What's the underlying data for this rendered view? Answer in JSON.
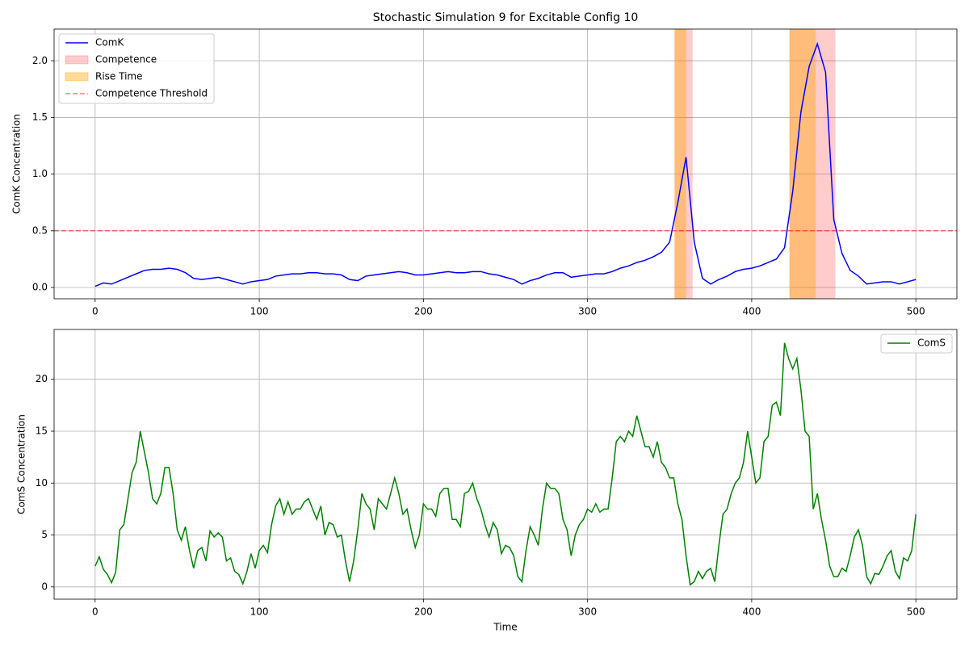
{
  "chart_data": [
    {
      "type": "line",
      "title": "Stochastic Simulation 9 for Excitable Config 10",
      "ylabel": "ComK Concentration",
      "x": [
        0,
        5,
        10,
        15,
        20,
        25,
        30,
        35,
        40,
        45,
        50,
        55,
        60,
        65,
        70,
        75,
        80,
        85,
        90,
        95,
        100,
        105,
        110,
        115,
        120,
        125,
        130,
        135,
        140,
        145,
        150,
        155,
        160,
        165,
        170,
        175,
        180,
        185,
        190,
        195,
        200,
        205,
        210,
        215,
        220,
        225,
        230,
        235,
        240,
        245,
        250,
        255,
        260,
        265,
        270,
        275,
        280,
        285,
        290,
        295,
        300,
        305,
        310,
        315,
        320,
        325,
        330,
        335,
        340,
        345,
        350,
        355,
        360,
        365,
        370,
        375,
        380,
        385,
        390,
        395,
        400,
        405,
        410,
        415,
        420,
        425,
        430,
        435,
        440,
        445,
        450,
        455,
        460,
        465,
        470,
        475,
        480,
        485,
        490,
        495,
        500
      ],
      "series": [
        {
          "name": "ComK",
          "color": "#0000ff",
          "values": [
            0.01,
            0.04,
            0.03,
            0.06,
            0.09,
            0.12,
            0.15,
            0.16,
            0.16,
            0.17,
            0.16,
            0.13,
            0.08,
            0.07,
            0.08,
            0.09,
            0.07,
            0.05,
            0.03,
            0.05,
            0.06,
            0.07,
            0.1,
            0.11,
            0.12,
            0.12,
            0.13,
            0.13,
            0.12,
            0.12,
            0.11,
            0.07,
            0.06,
            0.1,
            0.11,
            0.12,
            0.13,
            0.14,
            0.13,
            0.11,
            0.11,
            0.12,
            0.13,
            0.14,
            0.13,
            0.13,
            0.14,
            0.14,
            0.12,
            0.11,
            0.09,
            0.07,
            0.03,
            0.06,
            0.08,
            0.11,
            0.13,
            0.13,
            0.09,
            0.1,
            0.11,
            0.12,
            0.12,
            0.14,
            0.17,
            0.19,
            0.22,
            0.24,
            0.27,
            0.31,
            0.4,
            0.75,
            1.15,
            0.4,
            0.08,
            0.03,
            0.07,
            0.1,
            0.14,
            0.16,
            0.17,
            0.19,
            0.22,
            0.25,
            0.35,
            0.85,
            1.55,
            1.95,
            2.15,
            1.9,
            0.6,
            0.3,
            0.15,
            0.1,
            0.03,
            0.04,
            0.05,
            0.05,
            0.03,
            0.05,
            0.07
          ]
        }
      ],
      "spans": [
        {
          "name": "Competence",
          "color": "#ff0000",
          "alpha": 0.2,
          "ranges": [
            [
              353,
              364
            ],
            [
              423,
              451
            ]
          ]
        },
        {
          "name": "Rise Time",
          "color": "#ffa500",
          "alpha": 0.4,
          "ranges": [
            [
              353,
              360
            ],
            [
              423,
              439
            ]
          ]
        }
      ],
      "hline": {
        "name": "Competence Threshold",
        "value": 0.5,
        "color": "#ff0000",
        "alpha": 0.5
      },
      "xlim": [
        -25,
        525
      ],
      "ylim": [
        -0.1,
        2.28
      ],
      "xticks": [
        0,
        100,
        200,
        300,
        400,
        500
      ],
      "yticks": [
        {
          "value": 0,
          "label": "0.0"
        },
        {
          "value": 0.5,
          "label": "0.5"
        },
        {
          "value": 1,
          "label": "1.0"
        },
        {
          "value": 1.5,
          "label": "1.5"
        },
        {
          "value": 2,
          "label": "2.0"
        }
      ],
      "grid": true,
      "legend": "upper left"
    },
    {
      "type": "line",
      "xlabel": "Time",
      "ylabel": "ComS Concentration",
      "x": [
        0,
        2.5,
        5,
        7.5,
        10,
        12.5,
        15,
        17.5,
        20,
        22.5,
        25,
        27.5,
        30,
        32.5,
        35,
        37.5,
        40,
        42.5,
        45,
        47.5,
        50,
        52.5,
        55,
        57.5,
        60,
        62.5,
        65,
        67.5,
        70,
        72.5,
        75,
        77.5,
        80,
        82.5,
        85,
        87.5,
        90,
        92.5,
        95,
        97.5,
        100,
        102.5,
        105,
        107.5,
        110,
        112.5,
        115,
        117.5,
        120,
        122.5,
        125,
        127.5,
        130,
        132.5,
        135,
        137.5,
        140,
        142.5,
        145,
        147.5,
        150,
        152.5,
        155,
        157.5,
        160,
        162.5,
        165,
        167.5,
        170,
        172.5,
        175,
        177.5,
        180,
        182.5,
        185,
        187.5,
        190,
        192.5,
        195,
        197.5,
        200,
        202.5,
        205,
        207.5,
        210,
        212.5,
        215,
        217.5,
        220,
        222.5,
        225,
        227.5,
        230,
        232.5,
        235,
        237.5,
        240,
        242.5,
        245,
        247.5,
        250,
        252.5,
        255,
        257.5,
        260,
        262.5,
        265,
        267.5,
        270,
        272.5,
        275,
        277.5,
        280,
        282.5,
        285,
        287.5,
        290,
        292.5,
        295,
        297.5,
        300,
        302.5,
        305,
        307.5,
        310,
        312.5,
        315,
        317.5,
        320,
        322.5,
        325,
        327.5,
        330,
        332.5,
        335,
        337.5,
        340,
        342.5,
        345,
        347.5,
        350,
        352.5,
        355,
        357.5,
        360,
        362.5,
        365,
        367.5,
        370,
        372.5,
        375,
        377.5,
        380,
        382.5,
        385,
        387.5,
        390,
        392.5,
        395,
        397.5,
        400,
        402.5,
        405,
        407.5,
        410,
        412.5,
        415,
        417.5,
        420,
        422.5,
        425,
        427.5,
        430,
        432.5,
        435,
        437.5,
        440,
        442.5,
        445,
        447.5,
        450,
        452.5,
        455,
        457.5,
        460,
        462.5,
        465,
        467.5,
        470,
        472.5,
        475,
        477.5,
        480,
        482.5,
        485,
        487.5,
        490,
        492.5,
        495,
        497.5,
        500
      ],
      "series": [
        {
          "name": "ComS",
          "color": "#008000",
          "values": [
            2.0,
            2.9,
            1.7,
            1.2,
            0.4,
            1.4,
            5.5,
            6.0,
            8.5,
            11.0,
            12.0,
            15.0,
            13.0,
            11.0,
            8.5,
            8.0,
            9.0,
            11.5,
            11.5,
            9.0,
            5.5,
            4.5,
            5.8,
            3.5,
            1.8,
            3.5,
            3.8,
            2.5,
            5.4,
            4.8,
            5.2,
            4.8,
            2.5,
            2.8,
            1.5,
            1.2,
            0.3,
            1.5,
            3.2,
            1.8,
            3.5,
            4.0,
            3.3,
            6.0,
            7.8,
            8.5,
            7.0,
            8.2,
            7.0,
            7.5,
            7.5,
            8.2,
            8.5,
            7.5,
            6.5,
            7.8,
            5.0,
            6.2,
            6.0,
            4.8,
            5.0,
            2.5,
            0.5,
            2.5,
            5.5,
            9.0,
            8.0,
            7.5,
            5.5,
            8.5,
            8.0,
            7.5,
            9.0,
            10.5,
            9.0,
            7.0,
            7.5,
            5.5,
            3.8,
            5.0,
            8.0,
            7.5,
            7.5,
            6.8,
            9.0,
            9.5,
            9.5,
            6.5,
            6.5,
            5.8,
            9.0,
            9.2,
            10.0,
            8.5,
            7.5,
            6.0,
            4.8,
            6.2,
            5.5,
            3.2,
            4.0,
            3.8,
            3.0,
            1.0,
            0.5,
            3.5,
            5.8,
            5.0,
            4.0,
            7.5,
            10.0,
            9.5,
            9.5,
            9.0,
            6.5,
            5.5,
            3.0,
            5.0,
            6.0,
            6.5,
            7.5,
            7.2,
            8.0,
            7.2,
            7.5,
            7.5,
            10.5,
            14.0,
            14.5,
            14.0,
            15.0,
            14.5,
            16.5,
            15.0,
            13.5,
            13.5,
            12.5,
            14.0,
            12.0,
            11.5,
            10.5,
            10.5,
            8.0,
            6.5,
            3.0,
            0.2,
            0.5,
            1.5,
            0.8,
            1.5,
            1.8,
            0.5,
            4.0,
            7.0,
            7.5,
            9.0,
            10.0,
            10.5,
            12.0,
            15.0,
            12.5,
            10.0,
            10.5,
            14.0,
            14.5,
            17.5,
            17.8,
            16.5,
            23.5,
            22.0,
            21.0,
            22.0,
            19.0,
            15.0,
            14.5,
            7.5,
            9.0,
            6.5,
            4.5,
            2.0,
            1.0,
            1.0,
            1.8,
            1.5,
            3.0,
            4.8,
            5.5,
            4.0,
            1.0,
            0.3,
            1.3,
            1.2,
            2.0,
            3.0,
            3.5,
            1.5,
            0.8,
            2.8,
            2.5,
            3.5,
            7.0
          ]
        }
      ],
      "xlim": [
        -25,
        525
      ],
      "ylim": [
        -1.18,
        24.8
      ],
      "xticks": [
        0,
        100,
        200,
        300,
        400,
        500
      ],
      "yticks": [
        0,
        5,
        10,
        15,
        20
      ],
      "grid": true,
      "legend": "upper right"
    }
  ]
}
